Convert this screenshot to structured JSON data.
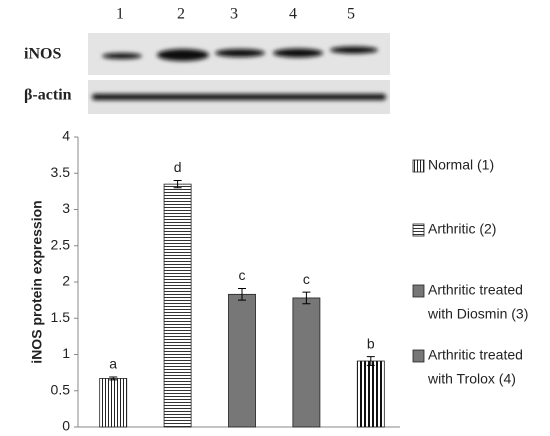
{
  "blot": {
    "lanes": [
      "1",
      "2",
      "3",
      "4",
      "5"
    ],
    "rows": [
      "iNOS",
      "β-actin"
    ]
  },
  "chart_data": {
    "type": "bar",
    "ylabel": "iNOS protein expression",
    "categories": [
      null,
      null,
      null,
      null,
      null
    ],
    "values": [
      0.67,
      3.35,
      1.83,
      1.78,
      0.91
    ],
    "errors": [
      0.02,
      0.05,
      0.08,
      0.08,
      0.06
    ],
    "annotations": [
      "a",
      "d",
      "c",
      "c",
      "b"
    ],
    "styles": [
      "vthin",
      "hline",
      "gray",
      "gray",
      "vbold"
    ],
    "ylim": [
      0,
      4
    ],
    "yticks": [
      0,
      0.5,
      1,
      1.5,
      2,
      2.5,
      3,
      3.5,
      4
    ],
    "legend": [
      {
        "lines": [
          "Normal (1)"
        ],
        "style": "vthin"
      },
      {
        "lines": [
          "Arthritic (2)"
        ],
        "style": "hline"
      },
      {
        "lines": [
          "Arthritic treated",
          "with Diosmin (3)"
        ],
        "style": "gray"
      },
      {
        "lines": [
          "Arthritic treated",
          "with Trolox (4)"
        ],
        "style": "gray"
      }
    ]
  }
}
